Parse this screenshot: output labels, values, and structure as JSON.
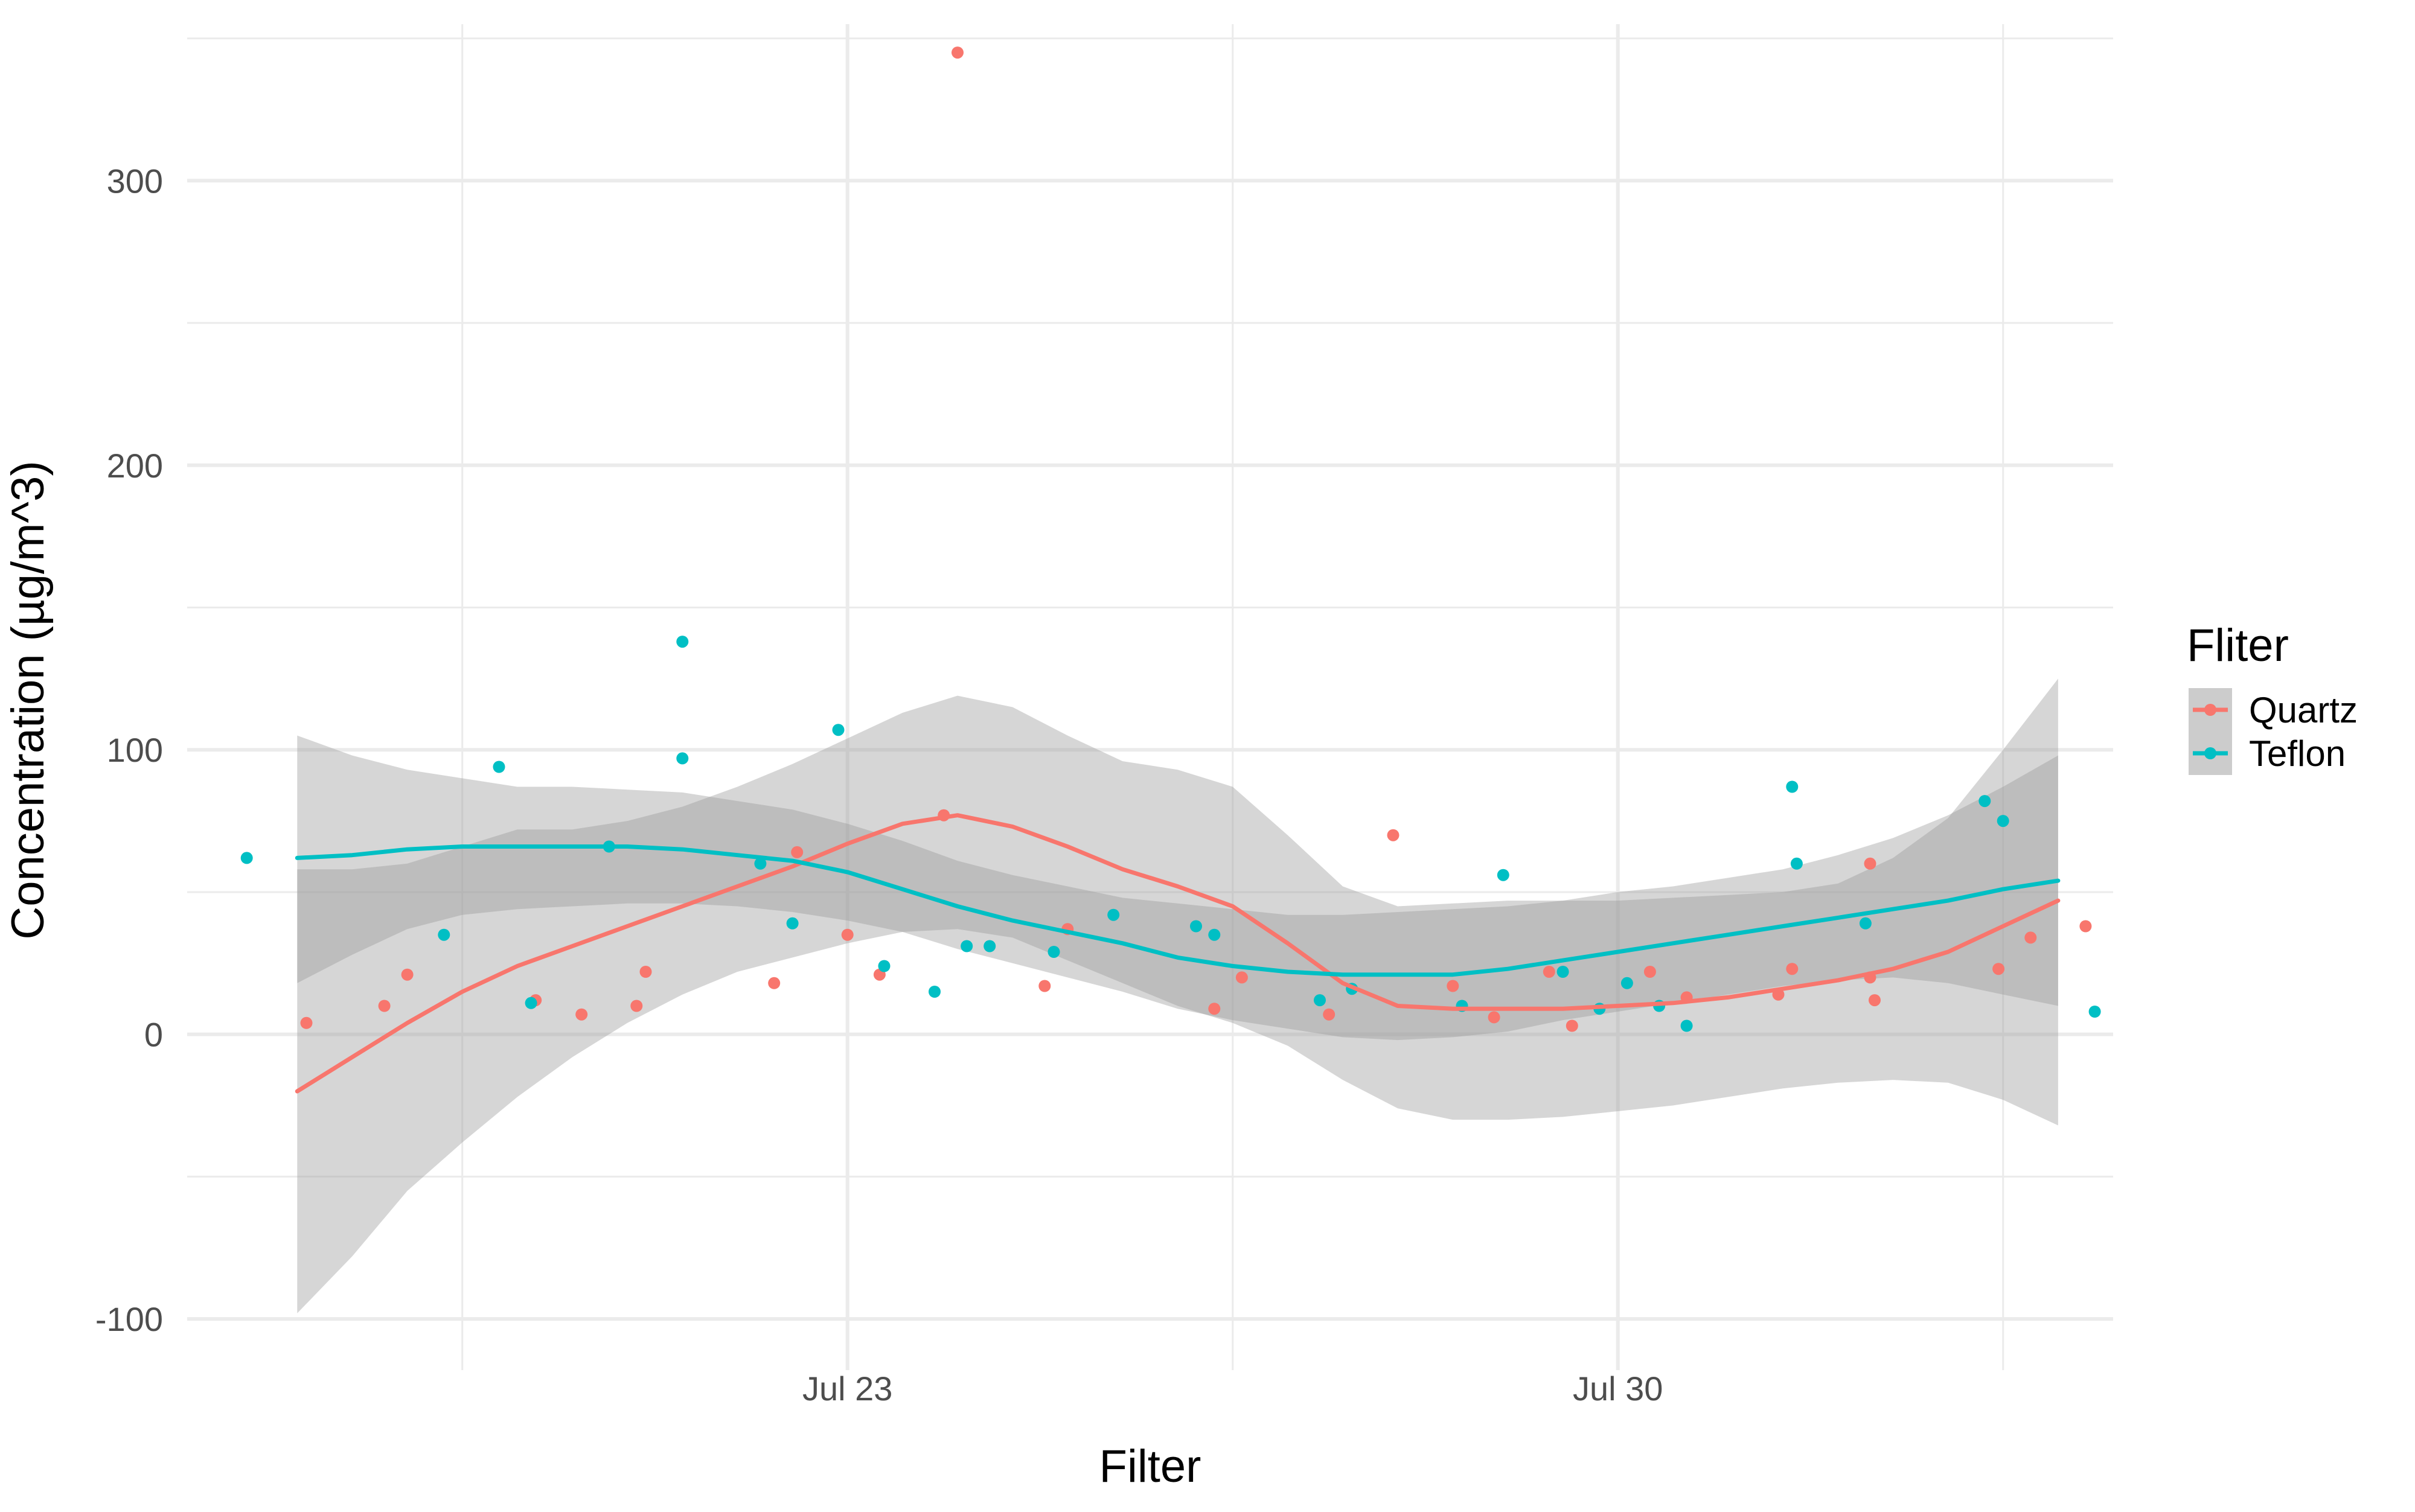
{
  "chart_data": {
    "type": "scatter",
    "xlabel": "Filter",
    "ylabel": "Concentration (µg/m^3)",
    "x_tick_labels": [
      {
        "x": "2023-07-23",
        "label": "Jul 23"
      },
      {
        "x": "2023-07-30",
        "label": "Jul 30"
      }
    ],
    "x_minor_breaks": [
      "2023-07-19T12:00",
      "2023-07-26T12:00",
      "2023-08-02T12:00"
    ],
    "xlim": [
      "2023-07-17T00:00",
      "2023-08-03T12:00"
    ],
    "y_ticks": [
      -100,
      0,
      100,
      200,
      300
    ],
    "y_tick_labels": [
      "-100",
      "0",
      "100",
      "200",
      "300"
    ],
    "y_minor_breaks": [
      -50,
      50,
      150,
      250,
      350
    ],
    "ylim": [
      -118,
      355
    ],
    "grid": true,
    "legend": {
      "title": "Fliter",
      "position": "right",
      "entries": [
        "Quartz",
        "Teflon"
      ]
    },
    "series": [
      {
        "name": "Quartz",
        "color": "#F8766D",
        "points": [
          {
            "x": "2023-07-18T02:00",
            "y": 4
          },
          {
            "x": "2023-07-18T19:00",
            "y": 10
          },
          {
            "x": "2023-07-19T00:00",
            "y": 21
          },
          {
            "x": "2023-07-20T04:00",
            "y": 12
          },
          {
            "x": "2023-07-20T14:00",
            "y": 7
          },
          {
            "x": "2023-07-21T02:00",
            "y": 10
          },
          {
            "x": "2023-07-21T04:00",
            "y": 22
          },
          {
            "x": "2023-07-22T08:00",
            "y": 18
          },
          {
            "x": "2023-07-22T13:00",
            "y": 64
          },
          {
            "x": "2023-07-23T00:00",
            "y": 35
          },
          {
            "x": "2023-07-23T07:00",
            "y": 21
          },
          {
            "x": "2023-07-23T21:00",
            "y": 77
          },
          {
            "x": "2023-07-24T00:00",
            "y": 345
          },
          {
            "x": "2023-07-24T19:00",
            "y": 17
          },
          {
            "x": "2023-07-25T00:00",
            "y": 37
          },
          {
            "x": "2023-07-26T08:00",
            "y": 9
          },
          {
            "x": "2023-07-26T14:00",
            "y": 20
          },
          {
            "x": "2023-07-27T09:00",
            "y": 7
          },
          {
            "x": "2023-07-27T23:00",
            "y": 70
          },
          {
            "x": "2023-07-28T12:00",
            "y": 17
          },
          {
            "x": "2023-07-28T21:00",
            "y": 6
          },
          {
            "x": "2023-07-29T09:00",
            "y": 22
          },
          {
            "x": "2023-07-29T14:00",
            "y": 3
          },
          {
            "x": "2023-07-30T07:00",
            "y": 22
          },
          {
            "x": "2023-07-30T15:00",
            "y": 13
          },
          {
            "x": "2023-07-31T11:00",
            "y": 14
          },
          {
            "x": "2023-07-31T14:00",
            "y": 23
          },
          {
            "x": "2023-08-01T07:00",
            "y": 60
          },
          {
            "x": "2023-08-01T08:00",
            "y": 12
          },
          {
            "x": "2023-08-01T07:00",
            "y": 20
          },
          {
            "x": "2023-08-02T11:00",
            "y": 23
          },
          {
            "x": "2023-08-02T18:00",
            "y": 34
          },
          {
            "x": "2023-08-03T06:00",
            "y": 38
          }
        ],
        "smooth": [
          {
            "x": "2023-07-18T00:00",
            "y": -20,
            "lo": -98,
            "hi": 58
          },
          {
            "x": "2023-07-18T12:00",
            "y": -8,
            "lo": -78,
            "hi": 58
          },
          {
            "x": "2023-07-19T00:00",
            "y": 4,
            "lo": -55,
            "hi": 60
          },
          {
            "x": "2023-07-19T12:00",
            "y": 15,
            "lo": -38,
            "hi": 66
          },
          {
            "x": "2023-07-20T00:00",
            "y": 24,
            "lo": -22,
            "hi": 72
          },
          {
            "x": "2023-07-20T12:00",
            "y": 31,
            "lo": -8,
            "hi": 72
          },
          {
            "x": "2023-07-21T00:00",
            "y": 38,
            "lo": 4,
            "hi": 75
          },
          {
            "x": "2023-07-21T12:00",
            "y": 45,
            "lo": 14,
            "hi": 80
          },
          {
            "x": "2023-07-22T00:00",
            "y": 52,
            "lo": 22,
            "hi": 87
          },
          {
            "x": "2023-07-22T12:00",
            "y": 59,
            "lo": 27,
            "hi": 95
          },
          {
            "x": "2023-07-23T00:00",
            "y": 67,
            "lo": 32,
            "hi": 104
          },
          {
            "x": "2023-07-23T12:00",
            "y": 74,
            "lo": 36,
            "hi": 113
          },
          {
            "x": "2023-07-24T00:00",
            "y": 77,
            "lo": 37,
            "hi": 119
          },
          {
            "x": "2023-07-24T12:00",
            "y": 73,
            "lo": 34,
            "hi": 115
          },
          {
            "x": "2023-07-25T00:00",
            "y": 66,
            "lo": 26,
            "hi": 105
          },
          {
            "x": "2023-07-25T12:00",
            "y": 58,
            "lo": 18,
            "hi": 96
          },
          {
            "x": "2023-07-26T00:00",
            "y": 52,
            "lo": 10,
            "hi": 93
          },
          {
            "x": "2023-07-26T12:00",
            "y": 45,
            "lo": 4,
            "hi": 87
          },
          {
            "x": "2023-07-27T00:00",
            "y": 32,
            "lo": -4,
            "hi": 70
          },
          {
            "x": "2023-07-27T12:00",
            "y": 18,
            "lo": -16,
            "hi": 52
          },
          {
            "x": "2023-07-28T00:00",
            "y": 10,
            "lo": -26,
            "hi": 45
          },
          {
            "x": "2023-07-28T12:00",
            "y": 9,
            "lo": -30,
            "hi": 46
          },
          {
            "x": "2023-07-29T00:00",
            "y": 9,
            "lo": -30,
            "hi": 47
          },
          {
            "x": "2023-07-29T12:00",
            "y": 9,
            "lo": -29,
            "hi": 47
          },
          {
            "x": "2023-07-30T00:00",
            "y": 10,
            "lo": -27,
            "hi": 47
          },
          {
            "x": "2023-07-30T12:00",
            "y": 11,
            "lo": -25,
            "hi": 48
          },
          {
            "x": "2023-07-31T00:00",
            "y": 13,
            "lo": -22,
            "hi": 49
          },
          {
            "x": "2023-07-31T12:00",
            "y": 16,
            "lo": -19,
            "hi": 50
          },
          {
            "x": "2023-08-01T00:00",
            "y": 19,
            "lo": -17,
            "hi": 53
          },
          {
            "x": "2023-08-01T12:00",
            "y": 23,
            "lo": -16,
            "hi": 62
          },
          {
            "x": "2023-08-02T00:00",
            "y": 29,
            "lo": -17,
            "hi": 76
          },
          {
            "x": "2023-08-02T12:00",
            "y": 38,
            "lo": -23,
            "hi": 100
          },
          {
            "x": "2023-08-03T00:00",
            "y": 47,
            "lo": -32,
            "hi": 125
          }
        ]
      },
      {
        "name": "Teflon",
        "color": "#00BFC4",
        "points": [
          {
            "x": "2023-07-17T13:00",
            "y": 62
          },
          {
            "x": "2023-07-19T08:00",
            "y": 35
          },
          {
            "x": "2023-07-19T20:00",
            "y": 94
          },
          {
            "x": "2023-07-20T03:00",
            "y": 11
          },
          {
            "x": "2023-07-20T20:00",
            "y": 66
          },
          {
            "x": "2023-07-21T12:00",
            "y": 138
          },
          {
            "x": "2023-07-21T12:00",
            "y": 97
          },
          {
            "x": "2023-07-22T05:00",
            "y": 60
          },
          {
            "x": "2023-07-22T12:00",
            "y": 39
          },
          {
            "x": "2023-07-22T22:00",
            "y": 107
          },
          {
            "x": "2023-07-23T08:00",
            "y": 24
          },
          {
            "x": "2023-07-23T19:00",
            "y": 15
          },
          {
            "x": "2023-07-24T07:00",
            "y": 31
          },
          {
            "x": "2023-07-24T02:00",
            "y": 31
          },
          {
            "x": "2023-07-24T21:00",
            "y": 29
          },
          {
            "x": "2023-07-25T10:00",
            "y": 42
          },
          {
            "x": "2023-07-26T04:00",
            "y": 38
          },
          {
            "x": "2023-07-26T08:00",
            "y": 35
          },
          {
            "x": "2023-07-27T07:00",
            "y": 12
          },
          {
            "x": "2023-07-27T14:00",
            "y": 16
          },
          {
            "x": "2023-07-28T14:00",
            "y": 10
          },
          {
            "x": "2023-07-28T23:00",
            "y": 56
          },
          {
            "x": "2023-07-29T12:00",
            "y": 22
          },
          {
            "x": "2023-07-29T20:00",
            "y": 9
          },
          {
            "x": "2023-07-30T02:00",
            "y": 18
          },
          {
            "x": "2023-07-30T09:00",
            "y": 10
          },
          {
            "x": "2023-07-30T15:00",
            "y": 3
          },
          {
            "x": "2023-07-31T14:00",
            "y": 87
          },
          {
            "x": "2023-07-31T15:00",
            "y": 60
          },
          {
            "x": "2023-08-01T06:00",
            "y": 39
          },
          {
            "x": "2023-08-02T08:00",
            "y": 82
          },
          {
            "x": "2023-08-02T12:00",
            "y": 75
          },
          {
            "x": "2023-08-03T08:00",
            "y": 8
          }
        ],
        "smooth": [
          {
            "x": "2023-07-18T00:00",
            "y": 62,
            "lo": 18,
            "hi": 105
          },
          {
            "x": "2023-07-18T12:00",
            "y": 63,
            "lo": 28,
            "hi": 98
          },
          {
            "x": "2023-07-19T00:00",
            "y": 65,
            "lo": 37,
            "hi": 93
          },
          {
            "x": "2023-07-19T12:00",
            "y": 66,
            "lo": 42,
            "hi": 90
          },
          {
            "x": "2023-07-20T00:00",
            "y": 66,
            "lo": 44,
            "hi": 87
          },
          {
            "x": "2023-07-20T12:00",
            "y": 66,
            "lo": 45,
            "hi": 87
          },
          {
            "x": "2023-07-21T00:00",
            "y": 66,
            "lo": 46,
            "hi": 86
          },
          {
            "x": "2023-07-21T12:00",
            "y": 65,
            "lo": 46,
            "hi": 85
          },
          {
            "x": "2023-07-22T00:00",
            "y": 63,
            "lo": 45,
            "hi": 82
          },
          {
            "x": "2023-07-22T12:00",
            "y": 61,
            "lo": 43,
            "hi": 79
          },
          {
            "x": "2023-07-23T00:00",
            "y": 57,
            "lo": 40,
            "hi": 74
          },
          {
            "x": "2023-07-23T12:00",
            "y": 51,
            "lo": 36,
            "hi": 68
          },
          {
            "x": "2023-07-24T00:00",
            "y": 45,
            "lo": 30,
            "hi": 61
          },
          {
            "x": "2023-07-24T12:00",
            "y": 40,
            "lo": 25,
            "hi": 56
          },
          {
            "x": "2023-07-25T00:00",
            "y": 36,
            "lo": 20,
            "hi": 52
          },
          {
            "x": "2023-07-25T12:00",
            "y": 32,
            "lo": 15,
            "hi": 48
          },
          {
            "x": "2023-07-26T00:00",
            "y": 27,
            "lo": 9,
            "hi": 46
          },
          {
            "x": "2023-07-26T12:00",
            "y": 24,
            "lo": 5,
            "hi": 44
          },
          {
            "x": "2023-07-27T00:00",
            "y": 22,
            "lo": 2,
            "hi": 42
          },
          {
            "x": "2023-07-27T12:00",
            "y": 21,
            "lo": -1,
            "hi": 42
          },
          {
            "x": "2023-07-28T00:00",
            "y": 21,
            "lo": -2,
            "hi": 43
          },
          {
            "x": "2023-07-28T12:00",
            "y": 21,
            "lo": -1,
            "hi": 44
          },
          {
            "x": "2023-07-29T00:00",
            "y": 23,
            "lo": 1,
            "hi": 45
          },
          {
            "x": "2023-07-29T12:00",
            "y": 26,
            "lo": 5,
            "hi": 47
          },
          {
            "x": "2023-07-30T00:00",
            "y": 29,
            "lo": 8,
            "hi": 50
          },
          {
            "x": "2023-07-30T12:00",
            "y": 32,
            "lo": 11,
            "hi": 52
          },
          {
            "x": "2023-07-31T00:00",
            "y": 35,
            "lo": 14,
            "hi": 55
          },
          {
            "x": "2023-07-31T12:00",
            "y": 38,
            "lo": 17,
            "hi": 58
          },
          {
            "x": "2023-08-01T00:00",
            "y": 41,
            "lo": 19,
            "hi": 63
          },
          {
            "x": "2023-08-01T12:00",
            "y": 44,
            "lo": 20,
            "hi": 69
          },
          {
            "x": "2023-08-02T00:00",
            "y": 47,
            "lo": 18,
            "hi": 77
          },
          {
            "x": "2023-08-02T12:00",
            "y": 51,
            "lo": 14,
            "hi": 87
          },
          {
            "x": "2023-08-03T00:00",
            "y": 54,
            "lo": 10,
            "hi": 98
          }
        ]
      }
    ]
  }
}
